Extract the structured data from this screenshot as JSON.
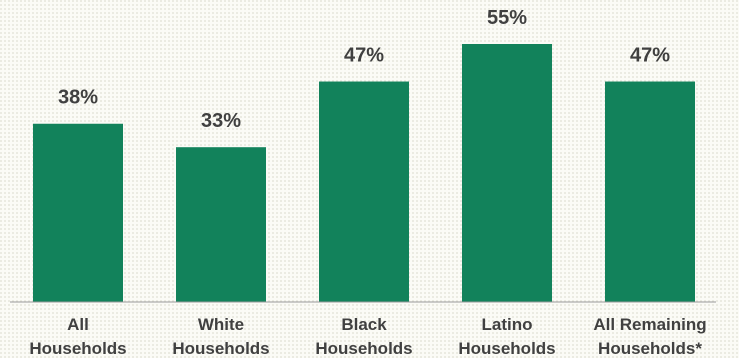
{
  "chart_data": {
    "type": "bar",
    "categories": [
      [
        "All",
        "Households"
      ],
      [
        "White",
        "Households"
      ],
      [
        "Black",
        "Households"
      ],
      [
        "Latino",
        "Households"
      ],
      [
        "All Remaining",
        "Households*"
      ]
    ],
    "values": [
      38,
      33,
      47,
      55,
      47
    ],
    "value_labels": [
      "38%",
      "33%",
      "47%",
      "55%",
      "47%"
    ],
    "ylim": [
      0,
      60
    ],
    "grid": false,
    "legend": "none"
  },
  "colors": {
    "bar": "#12825b",
    "text": "#404040",
    "axis": "#9a9a9a"
  }
}
